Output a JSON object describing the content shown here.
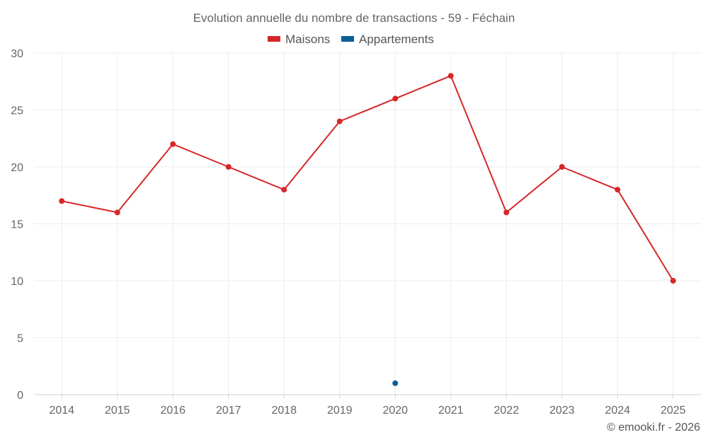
{
  "chart_data": {
    "type": "line",
    "title": "Evolution annuelle du nombre de transactions - 59 - Féchain",
    "categories": [
      "2014",
      "2015",
      "2016",
      "2017",
      "2018",
      "2019",
      "2020",
      "2021",
      "2022",
      "2023",
      "2024",
      "2025"
    ],
    "ylim": [
      0,
      30
    ],
    "yticks": [
      0,
      5,
      10,
      15,
      20,
      25,
      30
    ],
    "grid": true,
    "legend_position": "top-center",
    "series": [
      {
        "name": "Maisons",
        "color": "#d62728",
        "values": [
          17,
          16,
          22,
          20,
          18,
          24,
          26,
          28,
          16,
          20,
          18,
          10
        ]
      },
      {
        "name": "Appartements",
        "color": "#0b5e99",
        "values": [
          null,
          null,
          null,
          null,
          null,
          null,
          1,
          null,
          null,
          null,
          null,
          null
        ]
      }
    ],
    "credit": "© emooki.fr - 2026"
  }
}
